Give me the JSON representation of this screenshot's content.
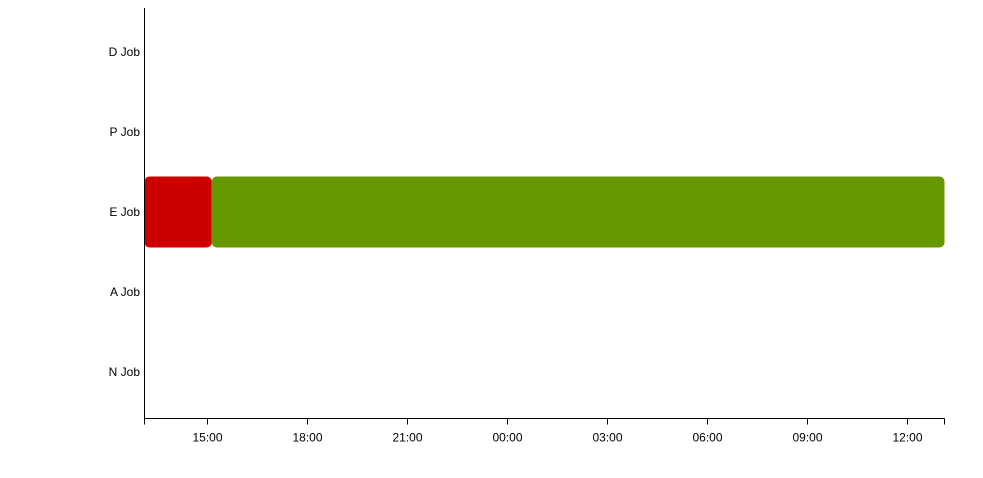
{
  "chart_data": {
    "type": "gantt",
    "title": "",
    "xlabel": "",
    "ylabel": "",
    "categories": [
      "D Job",
      "P Job",
      "E Job",
      "A Job",
      "N Job"
    ],
    "x_range": {
      "start": "13:08",
      "start_day": 0,
      "end": "13:08",
      "end_day": 1
    },
    "x_ticks": [
      {
        "label": "15:00",
        "day": 0
      },
      {
        "label": "18:00",
        "day": 0
      },
      {
        "label": "21:00",
        "day": 0
      },
      {
        "label": "00:00",
        "day": 1
      },
      {
        "label": "03:00",
        "day": 1
      },
      {
        "label": "06:00",
        "day": 1
      },
      {
        "label": "09:00",
        "day": 1
      },
      {
        "label": "12:00",
        "day": 1
      }
    ],
    "tasks": [
      {
        "category": "E Job",
        "start": "13:08",
        "start_day": 0,
        "end": "15:09",
        "end_day": 0,
        "color": "#cc0000"
      },
      {
        "category": "E Job",
        "start": "15:09",
        "start_day": 0,
        "end": "13:08",
        "end_day": 1,
        "color": "#669900"
      }
    ],
    "grid": false,
    "legend": "none"
  }
}
